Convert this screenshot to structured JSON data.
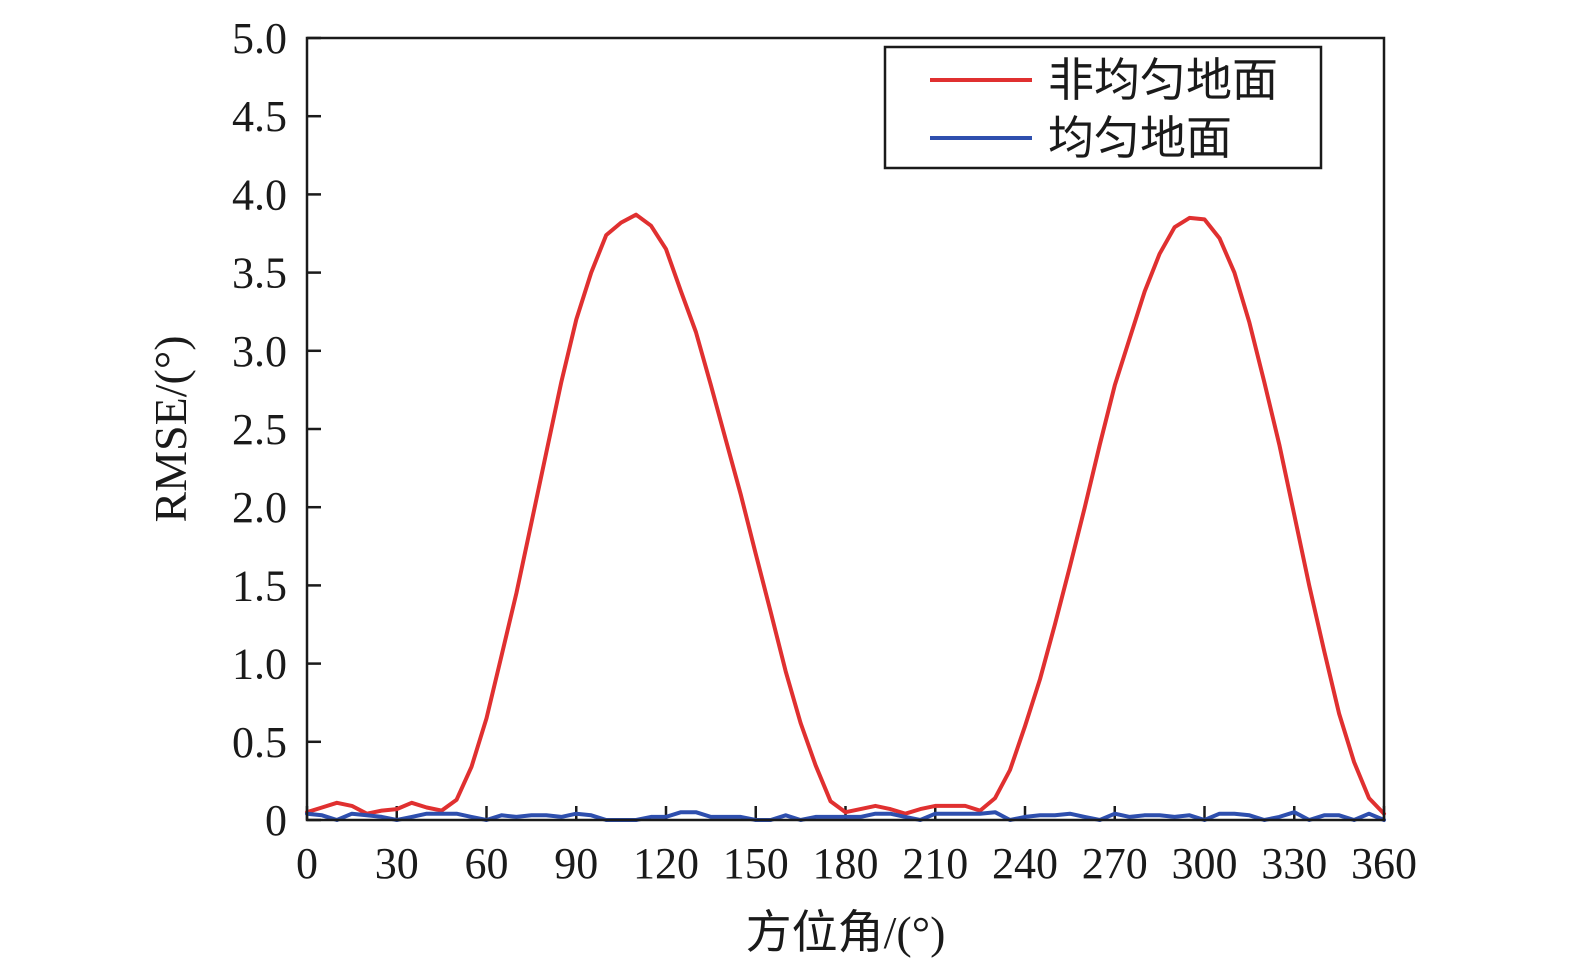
{
  "chart_data": {
    "type": "line",
    "xlabel": "方位角/(°)",
    "ylabel": "RMSE/(°)",
    "xlim": [
      0,
      360
    ],
    "ylim": [
      0,
      5
    ],
    "xticks": [
      0,
      30,
      60,
      90,
      120,
      150,
      180,
      210,
      240,
      270,
      300,
      330,
      360
    ],
    "yticks": [
      0,
      0.5,
      1.0,
      1.5,
      2.0,
      2.5,
      3.0,
      3.5,
      4.0,
      4.5,
      5.0
    ],
    "ytick_labels": [
      "0",
      "0.5",
      "1.0",
      "1.5",
      "2.0",
      "2.5",
      "3.0",
      "3.5",
      "4.0",
      "4.5",
      "5.0"
    ],
    "grid": false,
    "legend_position": "top-right",
    "x": [
      0,
      5,
      10,
      15,
      20,
      25,
      30,
      35,
      40,
      45,
      50,
      55,
      60,
      65,
      70,
      75,
      80,
      85,
      90,
      95,
      100,
      105,
      110,
      115,
      120,
      125,
      130,
      135,
      140,
      145,
      150,
      155,
      160,
      165,
      170,
      175,
      180,
      185,
      190,
      195,
      200,
      205,
      210,
      215,
      220,
      225,
      230,
      235,
      240,
      245,
      250,
      255,
      260,
      265,
      270,
      275,
      280,
      285,
      290,
      295,
      300,
      305,
      310,
      315,
      320,
      325,
      330,
      335,
      340,
      345,
      350,
      355,
      360
    ],
    "series": [
      {
        "name": "非均匀地面",
        "color": "#e03030",
        "values": [
          0.05,
          0.08,
          0.11,
          0.09,
          0.04,
          0.06,
          0.07,
          0.11,
          0.08,
          0.06,
          0.13,
          0.34,
          0.65,
          1.05,
          1.45,
          1.9,
          2.35,
          2.8,
          3.2,
          3.5,
          3.74,
          3.82,
          3.87,
          3.8,
          3.65,
          3.38,
          3.12,
          2.78,
          2.43,
          2.08,
          1.7,
          1.33,
          0.95,
          0.62,
          0.35,
          0.12,
          0.05,
          0.07,
          0.09,
          0.07,
          0.04,
          0.07,
          0.09,
          0.09,
          0.09,
          0.06,
          0.14,
          0.32,
          0.6,
          0.9,
          1.25,
          1.62,
          2.0,
          2.4,
          2.78,
          3.08,
          3.38,
          3.62,
          3.79,
          3.85,
          3.84,
          3.72,
          3.5,
          3.18,
          2.8,
          2.4,
          1.95,
          1.5,
          1.08,
          0.68,
          0.37,
          0.14,
          0.04
        ]
      },
      {
        "name": "均匀地面",
        "color": "#2e4fae",
        "values": [
          0.04,
          0.03,
          0.0,
          0.04,
          0.03,
          0.02,
          0.0,
          0.02,
          0.04,
          0.04,
          0.04,
          0.02,
          0.0,
          0.03,
          0.02,
          0.03,
          0.03,
          0.02,
          0.04,
          0.03,
          0.0,
          0.0,
          0.0,
          0.02,
          0.02,
          0.05,
          0.05,
          0.02,
          0.02,
          0.02,
          0.0,
          0.0,
          0.03,
          0.0,
          0.02,
          0.02,
          0.02,
          0.02,
          0.04,
          0.04,
          0.02,
          0.0,
          0.04,
          0.04,
          0.04,
          0.04,
          0.05,
          0.0,
          0.02,
          0.03,
          0.03,
          0.04,
          0.02,
          0.0,
          0.04,
          0.02,
          0.03,
          0.03,
          0.02,
          0.03,
          0.0,
          0.04,
          0.04,
          0.03,
          0.0,
          0.02,
          0.05,
          0.0,
          0.03,
          0.03,
          0.0,
          0.04,
          0.0
        ]
      }
    ]
  }
}
